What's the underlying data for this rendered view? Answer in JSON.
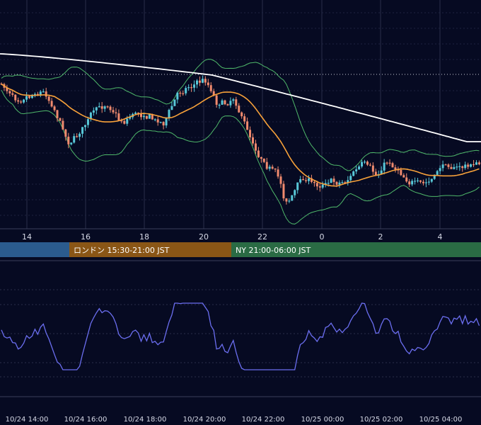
{
  "chart_data": [
    {
      "type": "candlestick",
      "overlays": [
        "long moving average (white)",
        "middle band (orange)",
        "upper/lower bands (green)"
      ],
      "x_tick_labels": [
        "14",
        "16",
        "18",
        "20",
        "22",
        "0",
        "2",
        "4"
      ],
      "x_range": [
        "10/24 13:00",
        "10/25 05:25"
      ],
      "grid": true,
      "colors": {
        "up": "#58c8d8",
        "down": "#f08a6e",
        "long_ma": "#ffffff",
        "mid_band": "#f7a13a",
        "bands": "#4fb86a"
      },
      "ohlc": [],
      "sessions": [
        {
          "label": "",
          "color": "#2b5b8e",
          "start": "10/24 09:00",
          "end": "10/24 15:30"
        },
        {
          "label": "ロンドン 15:30-21:00 JST",
          "color": "#8a5616",
          "start": "10/24 15:30",
          "end": "10/24 21:00"
        },
        {
          "label": "NY 21:00-06:00 JST",
          "color": "#2a6b44",
          "start": "10/24 21:00",
          "end": "10/25 06:00"
        }
      ]
    },
    {
      "type": "line",
      "series": [
        {
          "values": []
        }
      ],
      "line_color": "#6b6ef0",
      "grid": true,
      "x_tick_labels": [
        "10/24 14:00",
        "10/24 16:00",
        "10/24 18:00",
        "10/24 20:00",
        "10/24 22:00",
        "10/25 00:00",
        "10/25 02:00",
        "10/25 04:00"
      ]
    }
  ]
}
